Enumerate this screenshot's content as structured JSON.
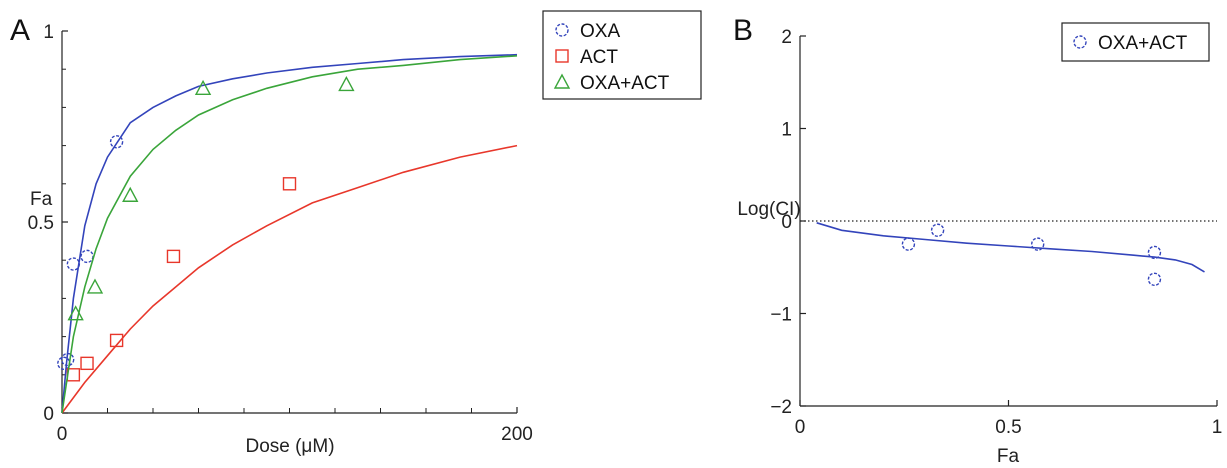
{
  "chart_data": [
    {
      "panel_label": "A",
      "type": "scatter",
      "xlabel": "Dose (μM)",
      "ylabel": "Fa",
      "xlim": [
        0,
        200
      ],
      "ylim": [
        0,
        1
      ],
      "x_ticks": [
        0,
        200
      ],
      "y_ticks": [
        0,
        0.5,
        1
      ],
      "x_tick_labels": [
        "0",
        "200"
      ],
      "y_tick_labels": [
        "0",
        "0.5",
        "1"
      ],
      "legend_position": "top-right",
      "series": [
        {
          "name": "OXA",
          "marker": "circle",
          "color": "#3344bb",
          "points": [
            [
              0.8,
              0.13
            ],
            [
              2.5,
              0.14
            ],
            [
              5,
              0.39
            ],
            [
              11,
              0.41
            ],
            [
              24,
              0.71
            ]
          ],
          "curve": [
            [
              0,
              0
            ],
            [
              2,
              0.13
            ],
            [
              5,
              0.3
            ],
            [
              10,
              0.49
            ],
            [
              15,
              0.6
            ],
            [
              20,
              0.67
            ],
            [
              30,
              0.76
            ],
            [
              40,
              0.8
            ],
            [
              50,
              0.83
            ],
            [
              60,
              0.855
            ],
            [
              75,
              0.875
            ],
            [
              90,
              0.89
            ],
            [
              110,
              0.905
            ],
            [
              130,
              0.915
            ],
            [
              150,
              0.925
            ],
            [
              175,
              0.933
            ],
            [
              200,
              0.938
            ]
          ]
        },
        {
          "name": "ACT",
          "marker": "square",
          "color": "#e8372b",
          "points": [
            [
              5,
              0.1
            ],
            [
              11,
              0.13
            ],
            [
              24,
              0.19
            ],
            [
              49,
              0.41
            ],
            [
              100,
              0.6
            ]
          ],
          "curve": [
            [
              0,
              0
            ],
            [
              10,
              0.08
            ],
            [
              20,
              0.15
            ],
            [
              30,
              0.22
            ],
            [
              40,
              0.28
            ],
            [
              50,
              0.33
            ],
            [
              60,
              0.38
            ],
            [
              75,
              0.44
            ],
            [
              90,
              0.49
            ],
            [
              110,
              0.55
            ],
            [
              130,
              0.59
            ],
            [
              150,
              0.63
            ],
            [
              175,
              0.67
            ],
            [
              200,
              0.7
            ]
          ]
        },
        {
          "name": "OXA+ACT",
          "marker": "triangle",
          "color": "#3aa53a",
          "points": [
            [
              6,
              0.26
            ],
            [
              14.5,
              0.33
            ],
            [
              30,
              0.57
            ],
            [
              62,
              0.85
            ],
            [
              125,
              0.86
            ]
          ],
          "curve": [
            [
              0,
              0
            ],
            [
              2.5,
              0.1
            ],
            [
              5,
              0.2
            ],
            [
              10,
              0.33
            ],
            [
              15,
              0.43
            ],
            [
              20,
              0.51
            ],
            [
              30,
              0.62
            ],
            [
              40,
              0.69
            ],
            [
              50,
              0.74
            ],
            [
              60,
              0.78
            ],
            [
              75,
              0.82
            ],
            [
              90,
              0.85
            ],
            [
              110,
              0.88
            ],
            [
              130,
              0.9
            ],
            [
              150,
              0.91
            ],
            [
              175,
              0.925
            ],
            [
              200,
              0.935
            ]
          ]
        }
      ]
    },
    {
      "panel_label": "B",
      "type": "scatter",
      "xlabel": "Fa",
      "ylabel": "Log(CI)",
      "xlim": [
        0,
        1
      ],
      "ylim": [
        -2,
        2
      ],
      "x_ticks": [
        0,
        0.5,
        1
      ],
      "y_ticks": [
        -2,
        -1,
        0,
        1,
        2
      ],
      "x_tick_labels": [
        "0",
        "0.5",
        "1"
      ],
      "y_tick_labels": [
        "−2",
        "−1",
        "0",
        "1",
        "2"
      ],
      "reference_line": {
        "y": 0,
        "style": "dotted"
      },
      "legend_position": "top-right",
      "series": [
        {
          "name": "OXA+ACT",
          "marker": "circle",
          "color": "#3344bb",
          "points": [
            [
              0.26,
              -0.25
            ],
            [
              0.33,
              -0.1
            ],
            [
              0.57,
              -0.25
            ],
            [
              0.85,
              -0.34
            ],
            [
              0.85,
              -0.63
            ]
          ],
          "curve": [
            [
              0.04,
              -0.02
            ],
            [
              0.1,
              -0.1
            ],
            [
              0.2,
              -0.16
            ],
            [
              0.3,
              -0.2
            ],
            [
              0.4,
              -0.24
            ],
            [
              0.5,
              -0.27
            ],
            [
              0.6,
              -0.3
            ],
            [
              0.7,
              -0.33
            ],
            [
              0.8,
              -0.37
            ],
            [
              0.85,
              -0.39
            ],
            [
              0.9,
              -0.42
            ],
            [
              0.94,
              -0.47
            ],
            [
              0.97,
              -0.55
            ]
          ]
        }
      ]
    }
  ]
}
